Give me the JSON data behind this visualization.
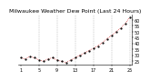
{
  "title": "Milwaukee Weather Dew Point (Last 24 Hours)",
  "line_color": "#cc0000",
  "marker_color": "#000000",
  "bg_color": "#ffffff",
  "grid_color": "#888888",
  "y_values": [
    28,
    27,
    29,
    28,
    26,
    25,
    27,
    28,
    26,
    25,
    24,
    26,
    28,
    30,
    32,
    34,
    36,
    38,
    41,
    44,
    47,
    50,
    53,
    57,
    62
  ],
  "ylim_min": 22,
  "ylim_max": 65,
  "ylabel_ticks": [
    25,
    30,
    35,
    40,
    45,
    50,
    55,
    60
  ],
  "vgrid_positions": [
    4,
    8,
    12,
    16,
    20,
    24
  ],
  "x_tick_positions": [
    0,
    4,
    8,
    12,
    16,
    20,
    24
  ],
  "x_tick_labels": [
    "1",
    "5",
    "9",
    "13",
    "17",
    "21",
    "25"
  ],
  "title_fontsize": 4.5,
  "axis_fontsize": 3.5,
  "line_width": 0.5,
  "marker_size": 1.2
}
